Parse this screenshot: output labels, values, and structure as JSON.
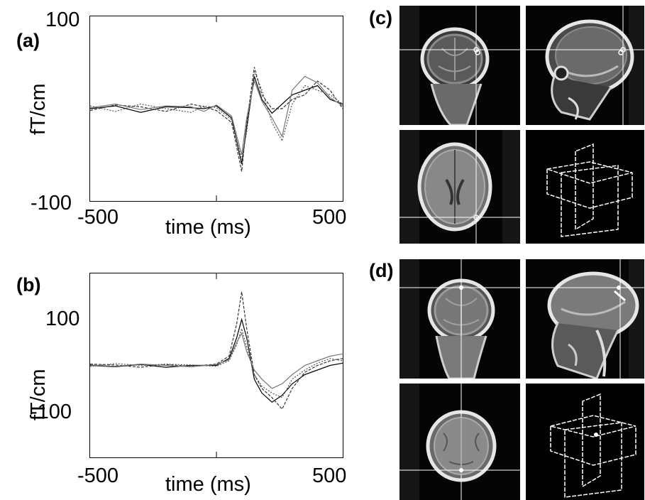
{
  "panels": {
    "a": {
      "label": "(a)",
      "yticks": [
        "100",
        "-100"
      ],
      "ylabel": "fT/cm",
      "xticks": [
        "-500",
        "500"
      ],
      "xlabel": "time (ms)"
    },
    "b": {
      "label": "(b)",
      "yticks": [
        "100",
        "-100"
      ],
      "ylabel": "fT/cm",
      "xticks": [
        "-500",
        "500"
      ],
      "xlabel": "time (ms)"
    },
    "c": {
      "label": "(c)"
    },
    "d": {
      "label": "(d)"
    }
  },
  "chart_data": [
    {
      "panel": "a",
      "type": "line",
      "xlabel": "time (ms)",
      "ylabel": "fT/cm",
      "xlim": [
        -500,
        500
      ],
      "ylim": [
        -100,
        100
      ],
      "grid": false,
      "series": [
        {
          "x": [
            -500,
            -400,
            -300,
            -200,
            -100,
            -50,
            0,
            60,
            100,
            120,
            150,
            180,
            220,
            260,
            300,
            350,
            400,
            450,
            500
          ],
          "y": [
            0,
            3,
            -4,
            2,
            1,
            0,
            3,
            -10,
            -60,
            -20,
            35,
            10,
            -5,
            5,
            15,
            20,
            25,
            10,
            5
          ]
        },
        {
          "x": [
            -500,
            -400,
            -300,
            -200,
            -100,
            -50,
            0,
            60,
            100,
            120,
            150,
            180,
            220,
            260,
            300,
            350,
            400,
            450,
            500
          ],
          "y": [
            -2,
            4,
            2,
            -3,
            5,
            2,
            -2,
            -15,
            -68,
            -15,
            45,
            15,
            0,
            0,
            10,
            15,
            30,
            20,
            0
          ]
        },
        {
          "x": [
            -500,
            -400,
            -300,
            -200,
            -100,
            -50,
            0,
            60,
            100,
            120,
            150,
            180,
            220,
            260,
            300,
            350,
            400,
            450,
            500
          ],
          "y": [
            3,
            -3,
            5,
            0,
            -4,
            3,
            1,
            -12,
            -55,
            -25,
            40,
            20,
            -15,
            -35,
            5,
            25,
            20,
            15,
            5
          ]
        },
        {
          "x": [
            -500,
            -400,
            -300,
            -200,
            -100,
            -50,
            0,
            60,
            100,
            120,
            150,
            180,
            220,
            260,
            300,
            350,
            400,
            450,
            500
          ],
          "y": [
            1,
            5,
            -1,
            3,
            2,
            -3,
            4,
            -8,
            -50,
            -10,
            30,
            8,
            -10,
            -30,
            20,
            35,
            28,
            12,
            3
          ]
        }
      ]
    },
    {
      "panel": "b",
      "type": "line",
      "xlabel": "time (ms)",
      "ylabel": "fT/cm",
      "xlim": [
        -500,
        500
      ],
      "ylim": [
        -200,
        200
      ],
      "grid": false,
      "series": [
        {
          "x": [
            -500,
            -400,
            -300,
            -200,
            -100,
            0,
            50,
            80,
            100,
            120,
            150,
            180,
            220,
            260,
            300,
            350,
            400,
            450,
            500
          ],
          "y": [
            0,
            -3,
            2,
            -4,
            0,
            0,
            15,
            60,
            100,
            60,
            -30,
            -60,
            -80,
            -65,
            -40,
            -20,
            -10,
            0,
            5
          ]
        },
        {
          "x": [
            -500,
            -400,
            -300,
            -200,
            -100,
            0,
            50,
            80,
            100,
            120,
            150,
            180,
            220,
            260,
            300,
            350,
            400,
            450,
            500
          ],
          "y": [
            3,
            1,
            -4,
            2,
            -2,
            3,
            20,
            90,
            160,
            80,
            -20,
            -50,
            -70,
            -95,
            -50,
            -15,
            0,
            10,
            15
          ]
        },
        {
          "x": [
            -500,
            -400,
            -300,
            -200,
            -100,
            0,
            50,
            80,
            100,
            120,
            150,
            180,
            220,
            260,
            300,
            350,
            400,
            450,
            500
          ],
          "y": [
            -2,
            4,
            0,
            3,
            1,
            -2,
            10,
            45,
            80,
            40,
            -20,
            -45,
            -60,
            -70,
            -30,
            -10,
            5,
            15,
            10
          ]
        },
        {
          "x": [
            -500,
            -400,
            -300,
            -200,
            -100,
            0,
            50,
            80,
            100,
            120,
            150,
            180,
            220,
            260,
            300,
            350,
            400,
            450,
            500
          ],
          "y": [
            1,
            -2,
            3,
            0,
            -3,
            2,
            12,
            50,
            70,
            30,
            -10,
            -30,
            -50,
            -40,
            -20,
            0,
            10,
            20,
            25
          ]
        }
      ]
    }
  ]
}
